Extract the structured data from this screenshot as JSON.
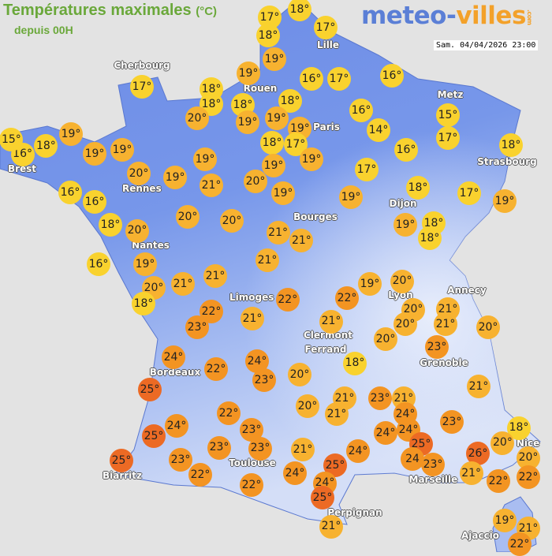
{
  "header": {
    "title": "Températures maximales",
    "unit": "(°C)",
    "subtitle": "depuis 00H",
    "logo_main": "meteo-",
    "logo_accent": "villes",
    "logo_suffix": ".com",
    "datetime": "Sam. 04/04/2026 23:00"
  },
  "colors": {
    "cool": "#f9d22e",
    "mild": "#f7b230",
    "warm": "#f39422",
    "hot": "#ec6a24",
    "land": "#6f8fe8",
    "background": "#e3e3e3"
  },
  "cities": [
    "Lille",
    "Cherbourg",
    "Rouen",
    "Paris",
    "Metz",
    "Strasbourg",
    "Brest",
    "Rennes",
    "Dijon",
    "Bourges",
    "Nantes",
    "Annecy",
    "Lyon",
    "Limoges",
    "Clermont",
    "Ferrand",
    "Grenoble",
    "Bordeaux",
    "Nice",
    "Marseille",
    "Toulouse",
    "Biarritz",
    "Perpignan",
    "Ajaccio"
  ],
  "temperatures": [
    "17°",
    "18°",
    "17°",
    "18°",
    "19°",
    "17°",
    "18°",
    "18°",
    "19°",
    "16°",
    "17°",
    "16°",
    "18°",
    "19°",
    "18°",
    "19°",
    "19°",
    "17°",
    "18°",
    "16°",
    "14°",
    "15°",
    "17°",
    "20°",
    "19°",
    "18°",
    "16°",
    "15°",
    "19°",
    "19°",
    "16°",
    "18°",
    "19°",
    "19°",
    "20°",
    "19°",
    "19°",
    "17°",
    "21°",
    "20°",
    "16°",
    "16°",
    "19°",
    "18°",
    "17°",
    "19°",
    "19°",
    "20°",
    "20°",
    "18°",
    "20°",
    "19°",
    "18°",
    "18°",
    "21°",
    "21°",
    "16°",
    "19°",
    "21°",
    "21°",
    "21°",
    "19°",
    "20°",
    "20°",
    "18°",
    "22°",
    "22°",
    "20°",
    "21°",
    "21°",
    "20°",
    "20°",
    "22°",
    "23°",
    "21°",
    "21°",
    "20°",
    "23°",
    "24°",
    "18°",
    "22°",
    "24°",
    "23°",
    "20°",
    "25°",
    "21°",
    "21°",
    "23°",
    "21°",
    "20°",
    "21°",
    "24°",
    "22°",
    "23°",
    "23°",
    "24°",
    "24°",
    "24°",
    "25°",
    "18°",
    "20°",
    "25°",
    "24",
    "26°",
    "23°",
    "23°",
    "21°",
    "24°",
    "23°",
    "20°",
    "25°",
    "23°",
    "25°",
    "24°",
    "21°",
    "22°",
    "22°",
    "22°",
    "22°",
    "24°",
    "25°",
    "21°",
    "19°",
    "21°",
    "22°"
  ]
}
